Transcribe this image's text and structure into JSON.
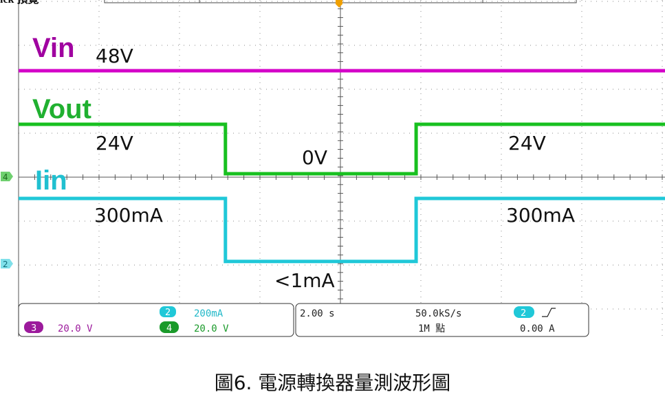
{
  "header": {
    "mode_label": "ick 預覽"
  },
  "caption": "圖6. 電源轉換器量測波形圖",
  "colors": {
    "ch3": "#d400c8",
    "ch4": "#18c020",
    "ch2": "#20c8d8",
    "ch3_label": "#a000a0",
    "ch4_label": "#20b030",
    "ch2_label": "#20c0d0"
  },
  "channel_markers": {
    "ch4": "4",
    "ch2": "2"
  },
  "labels": {
    "vin": "Vin",
    "vin_value": "48V",
    "vout": "Vout",
    "vout_high_left": "24V",
    "vout_low": "0V",
    "vout_high_right": "24V",
    "iin": "Iin",
    "iin_high_left": "300mA",
    "iin_low": "<1mA",
    "iin_high_right": "300mA"
  },
  "status_bar": {
    "ch3_num": "3",
    "ch3_scale": "20.0 V",
    "ch2_num": "2",
    "ch2_scale": "200mA",
    "ch4_num": "4",
    "ch4_scale": "20.0 V",
    "timebase": "2.00 s",
    "sample_rate": "50.0kS/s",
    "record_length": "1M 點",
    "trigger_ch": "2",
    "trigger_slope": "⎍",
    "trigger_level": "0.00 A"
  },
  "chart_data": {
    "type": "line",
    "x_unit": "s",
    "series": [
      {
        "name": "Vin",
        "unit": "V",
        "x": [
          0,
          20
        ],
        "values": [
          48,
          48
        ]
      },
      {
        "name": "Vout",
        "unit": "V",
        "x": [
          0,
          6.4,
          6.4,
          12.3,
          12.3,
          20
        ],
        "values": [
          24,
          24,
          0,
          0,
          24,
          24
        ]
      },
      {
        "name": "Iin",
        "unit": "mA",
        "x": [
          0,
          6.4,
          6.4,
          12.3,
          12.3,
          20
        ],
        "values": [
          300,
          300,
          1,
          1,
          300,
          300
        ]
      }
    ]
  }
}
